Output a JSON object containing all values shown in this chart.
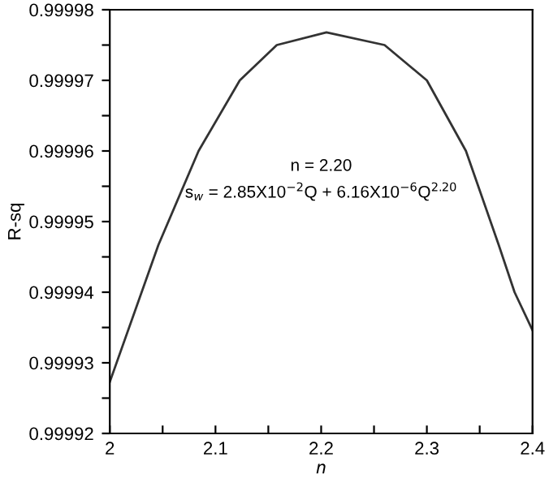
{
  "chart_data": {
    "type": "line",
    "xlabel": "n",
    "ylabel": "R-sq",
    "x": [
      2.0,
      2.046,
      2.084,
      2.123,
      2.158,
      2.205,
      2.26,
      2.3,
      2.337,
      2.368,
      2.383,
      2.4
    ],
    "series": [
      {
        "color": "#333333",
        "values": [
          0.9999273,
          0.9999467,
          0.99996,
          0.99997,
          0.999975,
          0.9999768,
          0.999975,
          0.99997,
          0.99996,
          0.9999467,
          0.99994,
          0.9999346
        ]
      }
    ],
    "xlim": [
      2,
      2.4
    ],
    "ylim": [
      0.99992,
      0.99998
    ],
    "xticks": [
      2,
      {
        "value": 2.05,
        "label": null
      },
      2.1,
      {
        "value": 2.15,
        "label": null
      },
      2.2,
      {
        "value": 2.25,
        "label": null
      },
      2.3,
      {
        "value": 2.35,
        "label": null
      },
      2.4
    ],
    "yticks": [
      0.99992,
      {
        "value": 0.999925,
        "label": null
      },
      0.99993,
      {
        "value": 0.999935,
        "label": null
      },
      0.99994,
      {
        "value": 0.999945,
        "label": null
      },
      0.99995,
      {
        "value": 0.999955,
        "label": null
      },
      0.99996,
      {
        "value": 0.999965,
        "label": null
      },
      0.99997,
      {
        "value": 0.999975,
        "label": null
      },
      0.99998
    ],
    "annotations": [
      "n = 2.20",
      "s$_{w}$ = 2.85X10$^{−2}$Q + 6.16X10$^{−6}$Q$^{2.20}$"
    ],
    "grid": false,
    "legend": false,
    "marker": "none",
    "line_style": "solid"
  }
}
